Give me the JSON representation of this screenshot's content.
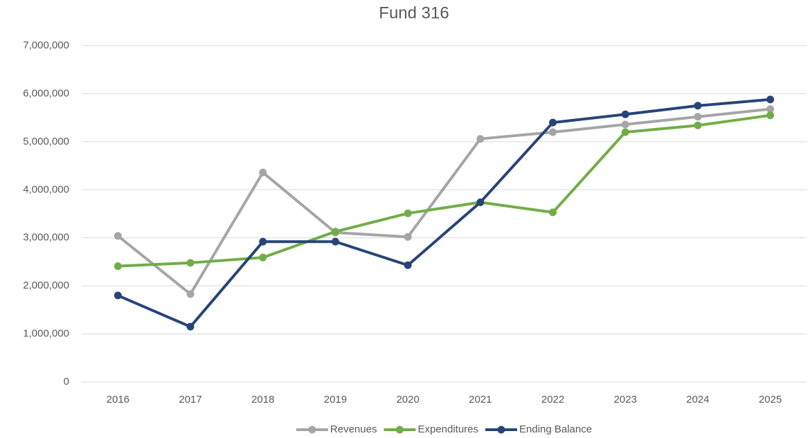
{
  "chart_data": {
    "type": "line",
    "title": "Fund 316",
    "categories": [
      "2016",
      "2017",
      "2018",
      "2019",
      "2020",
      "2021",
      "2022",
      "2023",
      "2024",
      "2025"
    ],
    "series": [
      {
        "name": "Revenues",
        "color": "#a5a5a5",
        "values": [
          3040000,
          1830000,
          4360000,
          3110000,
          3020000,
          5060000,
          5200000,
          5360000,
          5520000,
          5680000
        ]
      },
      {
        "name": "Expenditures",
        "color": "#70ad47",
        "values": [
          2410000,
          2480000,
          2590000,
          3130000,
          3510000,
          3740000,
          3530000,
          5200000,
          5340000,
          5550000
        ]
      },
      {
        "name": "Ending Balance",
        "color": "#264478",
        "values": [
          1800000,
          1150000,
          2920000,
          2920000,
          2430000,
          3740000,
          5400000,
          5570000,
          5750000,
          5880000
        ]
      }
    ],
    "ylim": [
      0,
      7000000
    ],
    "yticks": [
      0,
      {
        "value": 1000000,
        "label": "1,000,000"
      },
      {
        "value": 2000000,
        "label": "2,000,000"
      },
      {
        "value": 3000000,
        "label": "3,000,000"
      },
      {
        "value": 4000000,
        "label": "4,000,000"
      },
      {
        "value": 5000000,
        "label": "5,000,000"
      },
      {
        "value": 6000000,
        "label": "6,000,000"
      },
      {
        "value": 7000000,
        "label": "7,000,000"
      }
    ],
    "grid": true,
    "legend": "bottom"
  }
}
